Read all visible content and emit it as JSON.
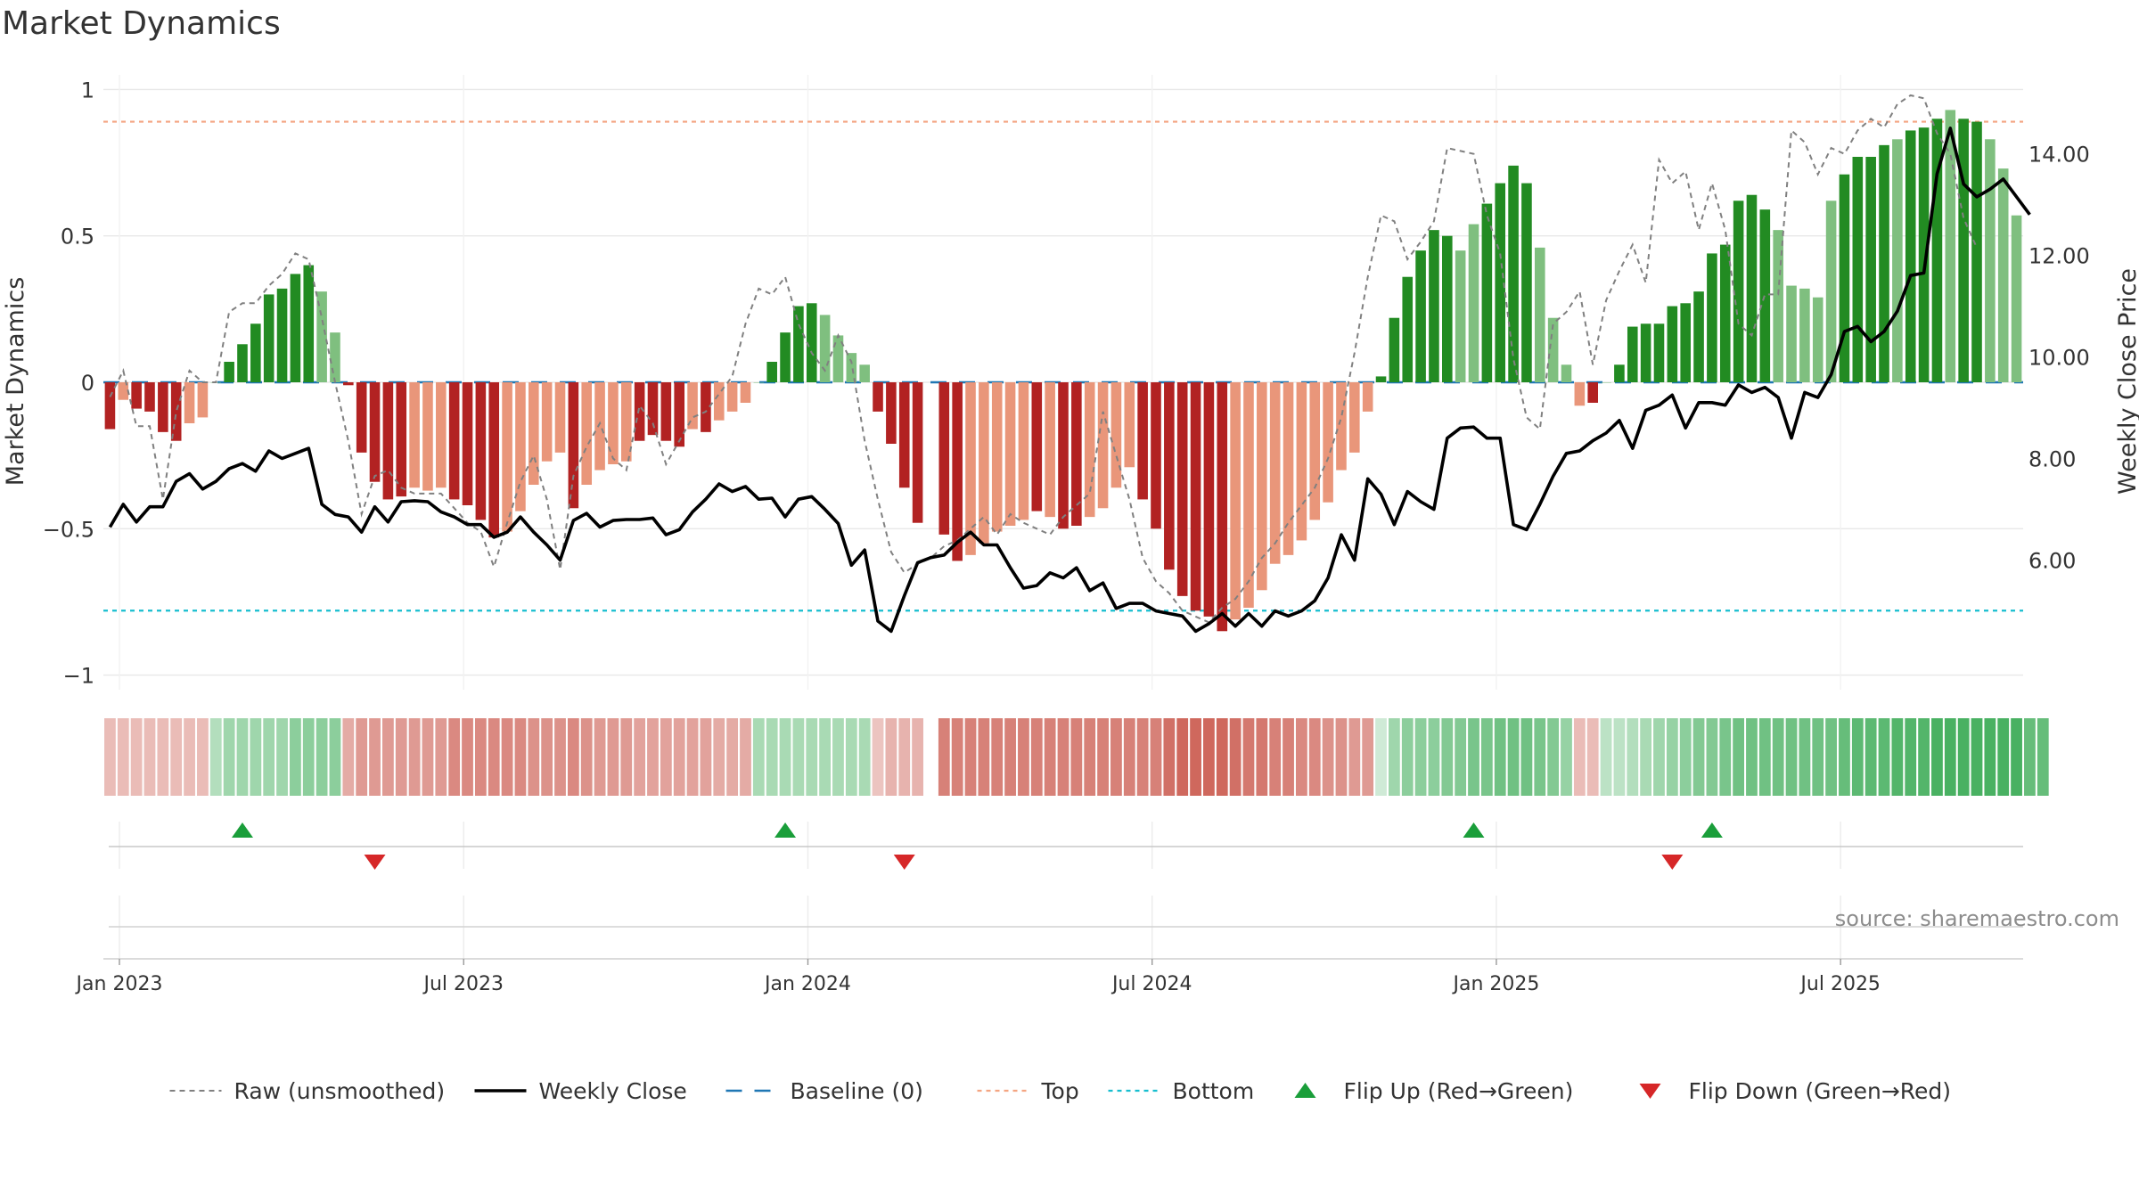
{
  "chart_data": {
    "type": "bar",
    "title": "Market Dynamics",
    "ylabel": "Market Dynamics",
    "y2label": "Weekly Close Price",
    "ylim": [
      -1.05,
      1.05
    ],
    "y2lim": [
      3.45,
      15.55
    ],
    "yticks": [
      "1",
      "0.5",
      "0",
      "−0.5",
      "−1"
    ],
    "yticks_values": [
      1,
      0.5,
      0,
      -0.5,
      -1
    ],
    "y2ticks": [
      "14.00",
      "12.00",
      "10.00",
      "8.00",
      "6.00"
    ],
    "y2ticks_values": [
      14,
      12,
      10,
      8,
      6
    ],
    "xticks": [
      "Jan 2023",
      "Jul 2023",
      "Jan 2024",
      "Jul 2024",
      "Jan 2025",
      "Jul 2025"
    ],
    "xticks_week_index": [
      0,
      26,
      52,
      78,
      104,
      130
    ],
    "x_start": "2023-01-01",
    "top_line": 0.89,
    "bottom_line": -0.78,
    "baseline": 0,
    "source": "source: sharemaestro.com",
    "grid": true,
    "legend_position": "bottom-center",
    "colors": {
      "strong_green": "#228b22",
      "light_green": "#7fbf7f",
      "strong_red": "#b22222",
      "light_red": "#e9967a",
      "close": "#000000",
      "raw": "#808080",
      "baseline": "#1f77b4",
      "top": "#f4a582",
      "bottom": "#17becf",
      "flip_up": "#1a9e3a",
      "flip_down": "#d62728"
    },
    "bar_values": [
      -0.16,
      -0.06,
      -0.09,
      -0.1,
      -0.17,
      -0.2,
      -0.14,
      -0.12,
      0,
      0.07,
      0.13,
      0.2,
      0.3,
      0.32,
      0.37,
      0.4,
      0.31,
      0.17,
      -0.01,
      -0.24,
      -0.34,
      -0.4,
      -0.39,
      -0.36,
      -0.37,
      -0.36,
      -0.4,
      -0.42,
      -0.47,
      -0.53,
      -0.51,
      -0.44,
      -0.35,
      -0.27,
      -0.24,
      -0.43,
      -0.35,
      -0.3,
      -0.28,
      -0.27,
      -0.2,
      -0.18,
      -0.2,
      -0.22,
      -0.16,
      -0.17,
      -0.13,
      -0.1,
      -0.07,
      0,
      0.07,
      0.17,
      0.26,
      0.27,
      0.23,
      0.16,
      0.1,
      0.06,
      -0.1,
      -0.21,
      -0.36,
      -0.48,
      null,
      -0.52,
      -0.61,
      -0.59,
      -0.55,
      -0.51,
      -0.49,
      -0.47,
      -0.44,
      -0.46,
      -0.5,
      -0.49,
      -0.46,
      -0.43,
      -0.36,
      -0.29,
      -0.4,
      -0.5,
      -0.64,
      -0.73,
      -0.78,
      -0.8,
      -0.85,
      -0.81,
      -0.77,
      -0.71,
      -0.62,
      -0.59,
      -0.54,
      -0.47,
      -0.41,
      -0.3,
      -0.24,
      -0.1,
      0.02,
      0.22,
      0.36,
      0.45,
      0.52,
      0.5,
      0.45,
      0.54,
      0.61,
      0.68,
      0.74,
      0.68,
      0.46,
      0.22,
      0.06,
      -0.08,
      -0.07,
      0,
      0.06,
      0.19,
      0.2,
      0.2,
      0.26,
      0.27,
      0.31,
      0.44,
      0.47,
      0.62,
      0.64,
      0.59,
      0.52,
      0.33,
      0.32,
      0.29,
      0.62,
      0.71,
      0.77,
      0.77,
      0.81,
      0.83,
      0.86,
      0.87,
      0.9,
      0.93,
      0.9,
      0.89,
      0.83,
      0.73,
      0.57
    ],
    "bar_shades": [
      "S",
      "L",
      "S",
      "S",
      "S",
      "S",
      "L",
      "L",
      "L",
      "S",
      "S",
      "S",
      "S",
      "S",
      "S",
      "S",
      "L",
      "L",
      "S",
      "S",
      "S",
      "S",
      "S",
      "L",
      "L",
      "L",
      "S",
      "S",
      "S",
      "S",
      "L",
      "L",
      "L",
      "L",
      "L",
      "S",
      "L",
      "L",
      "L",
      "L",
      "S",
      "S",
      "S",
      "S",
      "L",
      "S",
      "L",
      "L",
      "L",
      "L",
      "S",
      "S",
      "S",
      "S",
      "L",
      "L",
      "L",
      "L",
      "S",
      "S",
      "S",
      "S",
      "S",
      "S",
      "S",
      "L",
      "L",
      "L",
      "L",
      "L",
      "S",
      "L",
      "S",
      "S",
      "L",
      "L",
      "L",
      "L",
      "S",
      "S",
      "S",
      "S",
      "S",
      "S",
      "S",
      "L",
      "L",
      "L",
      "L",
      "L",
      "L",
      "L",
      "L",
      "L",
      "L",
      "L",
      "S",
      "S",
      "S",
      "S",
      "S",
      "S",
      "L",
      "L",
      "S",
      "S",
      "S",
      "S",
      "L",
      "L",
      "L",
      "L",
      "S",
      "L",
      "S",
      "S",
      "S",
      "S",
      "S",
      "S",
      "S",
      "S",
      "S",
      "S",
      "S",
      "S",
      "L",
      "L",
      "L",
      "L",
      "L",
      "S",
      "S",
      "S",
      "S",
      "L",
      "S",
      "S",
      "S",
      "L",
      "S",
      "S",
      "L",
      "L",
      "L",
      "L",
      "L"
    ],
    "strip_intensity": [
      0.4,
      0.4,
      0.4,
      0.4,
      0.4,
      0.4,
      0.4,
      0.4,
      0.4,
      0.5,
      0.5,
      0.5,
      0.5,
      0.5,
      0.6,
      0.6,
      0.6,
      0.6,
      0.5,
      0.6,
      0.6,
      0.6,
      0.6,
      0.6,
      0.6,
      0.6,
      0.7,
      0.7,
      0.7,
      0.7,
      0.7,
      0.7,
      0.65,
      0.65,
      0.65,
      0.7,
      0.65,
      0.6,
      0.6,
      0.6,
      0.55,
      0.55,
      0.55,
      0.55,
      0.55,
      0.55,
      0.5,
      0.5,
      0.5,
      0.45,
      0.45,
      0.45,
      0.45,
      0.45,
      0.45,
      0.45,
      0.45,
      0.45,
      0.35,
      0.45,
      0.45,
      0.45,
      null,
      0.75,
      0.75,
      0.75,
      0.75,
      0.75,
      0.75,
      0.75,
      0.75,
      0.75,
      0.75,
      0.75,
      0.75,
      0.75,
      0.75,
      0.75,
      0.75,
      0.75,
      0.85,
      0.9,
      0.9,
      0.9,
      0.9,
      0.85,
      0.8,
      0.8,
      0.75,
      0.75,
      0.7,
      0.7,
      0.65,
      0.65,
      0.6,
      0.6,
      0.25,
      0.5,
      0.6,
      0.6,
      0.6,
      0.65,
      0.65,
      0.7,
      0.7,
      0.75,
      0.75,
      0.75,
      0.7,
      0.65,
      0.55,
      0.4,
      0.4,
      0.35,
      0.35,
      0.4,
      0.45,
      0.5,
      0.55,
      0.6,
      0.65,
      0.65,
      0.7,
      0.75,
      0.75,
      0.75,
      0.75,
      0.75,
      0.75,
      0.75,
      0.75,
      0.8,
      0.85,
      0.85,
      0.85,
      0.9,
      0.9,
      0.9,
      0.95,
      0.95,
      0.95,
      0.95,
      0.95,
      0.95,
      0.95,
      0.8,
      0.8
    ],
    "raw_values": [
      -0.05,
      0.04,
      -0.15,
      -0.15,
      -0.4,
      -0.1,
      0.04,
      0,
      0,
      0.24,
      0.27,
      0.27,
      0.33,
      0.37,
      0.44,
      0.42,
      0.22,
      0,
      -0.2,
      -0.45,
      -0.32,
      -0.3,
      -0.36,
      -0.38,
      -0.38,
      -0.38,
      -0.43,
      -0.48,
      -0.51,
      -0.63,
      -0.48,
      -0.34,
      -0.25,
      -0.4,
      -0.64,
      -0.32,
      -0.22,
      -0.14,
      -0.26,
      -0.3,
      -0.08,
      -0.14,
      -0.28,
      -0.2,
      -0.12,
      -0.1,
      -0.04,
      0.02,
      0.2,
      0.32,
      0.3,
      0.36,
      0.2,
      0.1,
      0.04,
      0.16,
      0.07,
      -0.2,
      -0.4,
      -0.58,
      -0.65,
      -0.62,
      -0.6,
      -0.56,
      -0.54,
      -0.5,
      -0.46,
      -0.52,
      -0.45,
      -0.48,
      -0.5,
      -0.52,
      -0.46,
      -0.42,
      -0.38,
      -0.1,
      -0.25,
      -0.4,
      -0.6,
      -0.68,
      -0.72,
      -0.78,
      -0.8,
      -0.82,
      -0.77,
      -0.74,
      -0.68,
      -0.6,
      -0.55,
      -0.48,
      -0.42,
      -0.36,
      -0.26,
      -0.12,
      0.1,
      0.36,
      0.57,
      0.55,
      0.42,
      0.48,
      0.55,
      0.8,
      0.79,
      0.78,
      0.57,
      0.44,
      0.08,
      -0.12,
      -0.16,
      0.2,
      0.24,
      0.31,
      0.06,
      0.28,
      0.38,
      0.47,
      0.34,
      0.76,
      0.68,
      0.72,
      0.52,
      0.68,
      0.52,
      0.2,
      0.16,
      0.3,
      0.3,
      0.86,
      0.82,
      0.71,
      0.8,
      0.78,
      0.86,
      0.9,
      0.87,
      0.95,
      0.98,
      0.97,
      0.85,
      0.78,
      0.56,
      0.46
    ],
    "close_values": [
      6.65,
      7.1,
      6.75,
      7.05,
      7.05,
      7.55,
      7.7,
      7.4,
      7.55,
      7.8,
      7.9,
      7.75,
      8.15,
      8.0,
      8.1,
      8.2,
      7.1,
      6.9,
      6.85,
      6.55,
      7.05,
      6.75,
      7.15,
      7.17,
      7.15,
      6.95,
      6.85,
      6.7,
      6.7,
      6.45,
      6.55,
      6.85,
      6.55,
      6.3,
      6.0,
      6.78,
      6.92,
      6.65,
      6.78,
      6.8,
      6.8,
      6.83,
      6.5,
      6.6,
      6.95,
      7.2,
      7.5,
      7.35,
      7.45,
      7.2,
      7.22,
      6.85,
      7.2,
      7.25,
      7.0,
      6.72,
      5.9,
      6.2,
      4.8,
      4.6,
      5.3,
      5.95,
      6.05,
      6.1,
      6.35,
      6.55,
      6.3,
      6.3,
      5.85,
      5.45,
      5.5,
      5.75,
      5.65,
      5.85,
      5.4,
      5.55,
      5.05,
      5.15,
      5.15,
      5.0,
      4.95,
      4.9,
      4.6,
      4.75,
      4.95,
      4.7,
      4.95,
      4.7,
      5.0,
      4.9,
      5.0,
      5.2,
      5.65,
      6.5,
      6.0,
      7.6,
      7.3,
      6.7,
      7.35,
      7.15,
      7.0,
      8.4,
      8.6,
      8.62,
      8.4,
      8.4,
      6.7,
      6.6,
      7.1,
      7.65,
      8.1,
      8.15,
      8.35,
      8.5,
      8.75,
      8.2,
      8.95,
      9.05,
      9.25,
      8.6,
      9.1,
      9.1,
      9.05,
      9.45,
      9.3,
      9.4,
      9.2,
      8.4,
      9.3,
      9.2,
      9.65,
      10.5,
      10.6,
      10.3,
      10.5,
      10.9,
      11.6,
      11.65,
      13.6,
      14.5,
      13.4,
      13.15,
      13.3,
      13.5,
      13.15,
      12.8
    ]
  },
  "flips": {
    "up": [
      10,
      51,
      103,
      121
    ],
    "down": [
      20,
      60,
      118
    ]
  },
  "legend": [
    {
      "label": "Raw (unsmoothed)",
      "kind": "dash-gray"
    },
    {
      "label": "Weekly Close",
      "kind": "solid-black"
    },
    {
      "label": "Baseline (0)",
      "kind": "dash-blue"
    },
    {
      "label": "Top",
      "kind": "dot-orange"
    },
    {
      "label": "Bottom",
      "kind": "dot-cyan"
    },
    {
      "label": "Flip Up (Red→Green)",
      "kind": "tri-up"
    },
    {
      "label": "Flip Down (Green→Red)",
      "kind": "tri-down"
    }
  ]
}
